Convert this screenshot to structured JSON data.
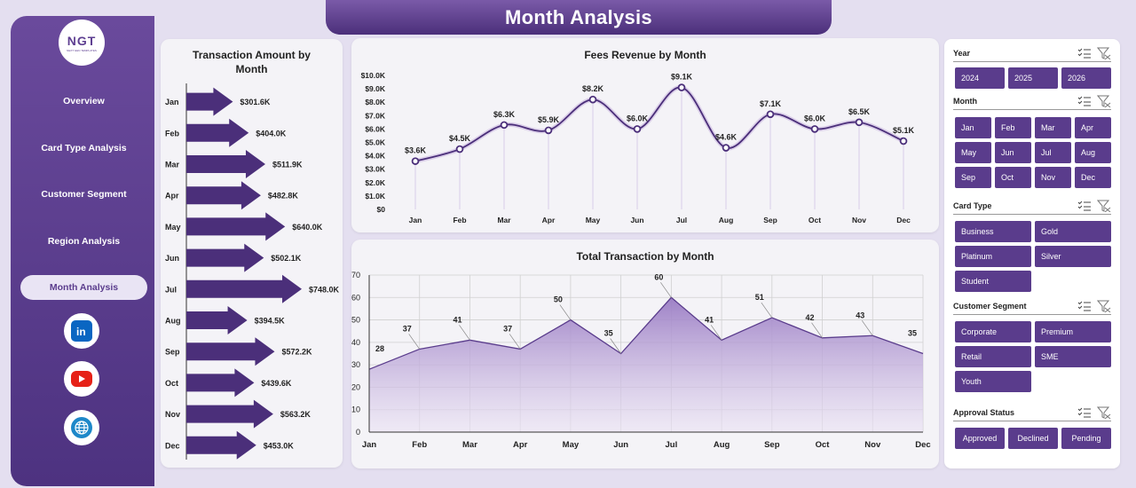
{
  "header": {
    "title": "Month Analysis"
  },
  "logo": {
    "text": "NGT",
    "tagline": "NEXT GEN TEMPLATES"
  },
  "nav": {
    "items": [
      {
        "label": "Overview"
      },
      {
        "label": "Card Type Analysis"
      },
      {
        "label": "Customer Segment"
      },
      {
        "label": "Region Analysis"
      },
      {
        "label": "Month Analysis"
      }
    ]
  },
  "social": [
    {
      "icon": "linkedin-icon",
      "color": "#0a66c2"
    },
    {
      "icon": "youtube-icon",
      "color": "#e62117"
    },
    {
      "icon": "globe-icon",
      "color": "#1e88c9"
    }
  ],
  "slicers": {
    "year": {
      "title": "Year",
      "options": [
        "2024",
        "2025",
        "2026"
      ]
    },
    "month": {
      "title": "Month",
      "options": [
        "Jan",
        "Feb",
        "Mar",
        "Apr",
        "May",
        "Jun",
        "Jul",
        "Aug",
        "Sep",
        "Oct",
        "Nov",
        "Dec"
      ]
    },
    "card_type": {
      "title": "Card Type",
      "options": [
        "Business",
        "Gold",
        "Platinum",
        "Silver",
        "Student"
      ]
    },
    "customer_segment": {
      "title": "Customer Segment",
      "options": [
        "Corporate",
        "Premium",
        "Retail",
        "SME",
        "Youth"
      ]
    },
    "approval_status": {
      "title": "Approval Status",
      "options": [
        "Approved",
        "Declined",
        "Pending"
      ]
    }
  },
  "chart_data": [
    {
      "type": "bar",
      "orientation": "horizontal",
      "title": "Transaction Amount by Month",
      "categories": [
        "Jan",
        "Feb",
        "Mar",
        "Apr",
        "May",
        "Jun",
        "Jul",
        "Aug",
        "Sep",
        "Oct",
        "Nov",
        "Dec"
      ],
      "values": [
        301.6,
        404.0,
        511.9,
        482.8,
        640.0,
        502.1,
        748.0,
        394.5,
        572.2,
        439.6,
        563.2,
        453.0
      ],
      "data_labels": [
        "$301.6K",
        "$404.0K",
        "$511.9K",
        "$482.8K",
        "$640.0K",
        "$502.1K",
        "$748.0K",
        "$394.5K",
        "$572.2K",
        "$439.6K",
        "$563.2K",
        "$453.0K"
      ],
      "unit": "K",
      "color": "#4b2f7a"
    },
    {
      "type": "line",
      "title": "Fees Revenue by Month",
      "categories": [
        "Jan",
        "Feb",
        "Mar",
        "Apr",
        "May",
        "Jun",
        "Jul",
        "Aug",
        "Sep",
        "Oct",
        "Nov",
        "Dec"
      ],
      "values": [
        3.6,
        4.5,
        6.3,
        5.9,
        8.2,
        6.0,
        9.1,
        4.6,
        7.1,
        6.0,
        6.5,
        5.1
      ],
      "data_labels": [
        "$3.6K",
        "$4.5K",
        "$6.3K",
        "$5.9K",
        "$8.2K",
        "$6.0K",
        "$9.1K",
        "$4.6K",
        "$7.1K",
        "$6.0K",
        "$6.5K",
        "$5.1K"
      ],
      "ylim": [
        0,
        10
      ],
      "yticks": [
        "$0",
        "$1.0K",
        "$2.0K",
        "$3.0K",
        "$4.0K",
        "$5.0K",
        "$6.0K",
        "$7.0K",
        "$8.0K",
        "$9.0K",
        "$10.0K"
      ],
      "color": "#4b2f7a"
    },
    {
      "type": "area",
      "title": "Total Transaction by Month",
      "categories": [
        "Jan",
        "Feb",
        "Mar",
        "Apr",
        "May",
        "Jun",
        "Jul",
        "Aug",
        "Sep",
        "Oct",
        "Nov",
        "Dec"
      ],
      "values": [
        28,
        37,
        41,
        37,
        50,
        35,
        60,
        41,
        51,
        42,
        43,
        35
      ],
      "ylim": [
        0,
        70
      ],
      "yticks": [
        "0",
        "10",
        "20",
        "30",
        "40",
        "50",
        "60",
        "70"
      ],
      "color": "#9a7cc4"
    }
  ]
}
